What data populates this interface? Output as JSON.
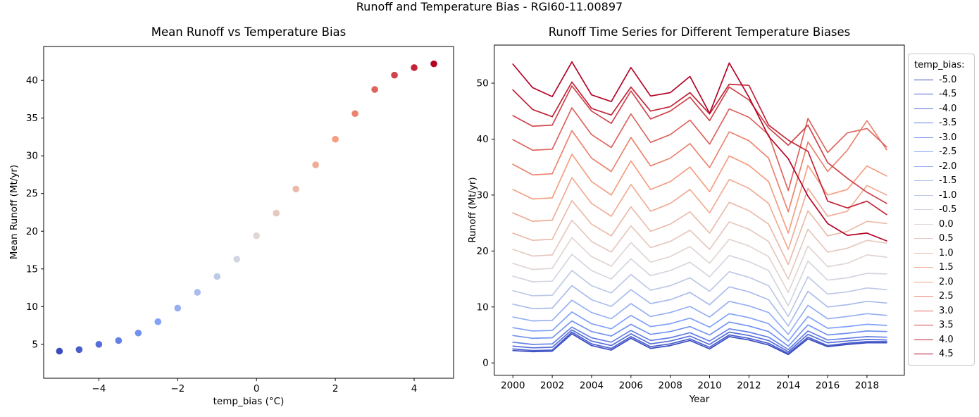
{
  "figure": {
    "title": "Runoff and Temperature Bias - RGI60-11.00897"
  },
  "colors": {
    "axis": "#000000",
    "legend_border": "#c7c7c7",
    "background": "#ffffff",
    "coolwarm_palette": [
      "#3b4cc0",
      "#495dcc",
      "#566fd8",
      "#6480e4",
      "#7292f0",
      "#81a2f8",
      "#96aff2",
      "#aabcec",
      "#bec9e6",
      "#d3d6e0",
      "#e0d6d3",
      "#e5c8bf",
      "#eabbaa",
      "#efad96",
      "#f49f82",
      "#eb846f",
      "#dd645d",
      "#cf444b",
      "#c22438",
      "#b40426"
    ]
  },
  "legend": {
    "title": "temp_bias:",
    "entries": [
      "-5.0",
      "-4.5",
      "-4.0",
      "-3.5",
      "-3.0",
      "-2.5",
      "-2.0",
      "-1.5",
      "-1.0",
      "-0.5",
      "0.0",
      "0.5",
      "1.0",
      "1.5",
      "2.0",
      "2.5",
      "3.0",
      "3.5",
      "4.0",
      "4.5"
    ],
    "position": "right"
  },
  "chart_data": [
    {
      "type": "scatter",
      "title": "Mean Runoff vs Temperature Bias",
      "xlabel": "temp_bias (°C)",
      "ylabel": "Mean Runoff (Mt/yr)",
      "x": [
        -5.0,
        -4.5,
        -4.0,
        -3.5,
        -3.0,
        -2.5,
        -2.0,
        -1.5,
        -1.0,
        -0.5,
        0.0,
        0.5,
        1.0,
        1.5,
        2.0,
        2.5,
        3.0,
        3.5,
        4.0,
        4.5
      ],
      "y": [
        4.1,
        4.3,
        5.0,
        5.5,
        6.5,
        8.0,
        9.8,
        11.9,
        14.0,
        16.3,
        19.4,
        22.4,
        25.6,
        28.8,
        32.2,
        35.6,
        38.8,
        40.7,
        41.7,
        42.2
      ],
      "xticks": [
        -4,
        -2,
        0,
        2,
        4
      ],
      "xtick_labels": [
        "−4",
        "−2",
        "0",
        "2",
        "4"
      ],
      "yticks": [
        5,
        10,
        15,
        20,
        25,
        30,
        35,
        40
      ],
      "ytick_labels": [
        "5",
        "10",
        "15",
        "20",
        "25",
        "30",
        "35",
        "40"
      ],
      "xlim": [
        -5.4,
        5.0
      ],
      "ylim": [
        0.5,
        44.5
      ],
      "grid": false,
      "marker_radius": 4.8
    },
    {
      "type": "line",
      "title": "Runoff Time Series for Different Temperature Biases",
      "xlabel": "Year",
      "ylabel": "Runoff (Mt/yr)",
      "x": [
        2000,
        2001,
        2002,
        2003,
        2004,
        2005,
        2006,
        2007,
        2008,
        2009,
        2010,
        2011,
        2012,
        2013,
        2014,
        2015,
        2016,
        2017,
        2018,
        2019
      ],
      "series": [
        {
          "name": "-5.0",
          "values": [
            2.2,
            2.0,
            2.1,
            5.2,
            3.1,
            2.3,
            4.4,
            2.6,
            3.1,
            4.0,
            2.5,
            4.7,
            4.1,
            3.2,
            1.5,
            4.3,
            2.9,
            3.3,
            3.6,
            3.6
          ]
        },
        {
          "name": "-4.5",
          "values": [
            2.5,
            2.2,
            2.3,
            5.5,
            3.4,
            2.6,
            4.7,
            2.9,
            3.4,
            4.3,
            2.8,
            5.0,
            4.4,
            3.5,
            1.7,
            4.6,
            3.1,
            3.5,
            3.8,
            3.8
          ]
        },
        {
          "name": "-4.0",
          "values": [
            3.0,
            2.7,
            2.8,
            5.9,
            3.9,
            3.1,
            5.2,
            3.4,
            3.9,
            4.8,
            3.3,
            5.5,
            4.9,
            4.0,
            2.0,
            5.1,
            3.6,
            3.9,
            4.2,
            4.1
          ]
        },
        {
          "name": "-3.5",
          "values": [
            3.7,
            3.3,
            3.4,
            6.4,
            4.5,
            3.7,
            5.8,
            4.0,
            4.5,
            5.4,
            3.9,
            6.1,
            5.5,
            4.6,
            2.4,
            5.7,
            4.1,
            4.4,
            4.7,
            4.6
          ]
        },
        {
          "name": "-3.0",
          "values": [
            4.9,
            4.4,
            4.5,
            7.5,
            5.6,
            4.8,
            6.9,
            5.1,
            5.6,
            6.5,
            5.0,
            7.3,
            6.6,
            5.6,
            3.0,
            6.8,
            5.0,
            5.3,
            5.7,
            5.6
          ]
        },
        {
          "name": "-2.5",
          "values": [
            6.3,
            5.7,
            5.8,
            9.1,
            7.0,
            6.1,
            8.5,
            6.5,
            7.0,
            8.0,
            6.4,
            8.8,
            8.1,
            7.0,
            3.9,
            8.3,
            6.2,
            6.5,
            6.9,
            6.7
          ]
        },
        {
          "name": "-2.0",
          "values": [
            8.2,
            7.5,
            7.6,
            11.2,
            9.0,
            7.9,
            10.6,
            8.3,
            9.0,
            10.1,
            8.2,
            11.0,
            10.2,
            9.0,
            5.1,
            10.3,
            7.9,
            8.3,
            8.8,
            8.5
          ]
        },
        {
          "name": "-1.5",
          "values": [
            10.5,
            9.7,
            9.8,
            13.8,
            11.3,
            10.1,
            13.1,
            10.6,
            11.3,
            12.6,
            10.4,
            13.6,
            12.7,
            11.3,
            6.6,
            12.8,
            10.0,
            10.4,
            11.0,
            10.7
          ]
        },
        {
          "name": "-1.0",
          "values": [
            12.9,
            12.0,
            12.1,
            16.5,
            13.8,
            12.5,
            15.8,
            13.0,
            13.8,
            15.2,
            12.8,
            16.3,
            15.3,
            13.8,
            8.3,
            15.4,
            12.3,
            12.7,
            13.4,
            13.1
          ]
        },
        {
          "name": "-0.5",
          "values": [
            15.5,
            14.5,
            14.6,
            19.4,
            16.5,
            15.0,
            18.6,
            15.6,
            16.5,
            18.0,
            15.4,
            19.2,
            18.1,
            16.5,
            10.2,
            18.2,
            14.8,
            15.2,
            16.0,
            15.9
          ]
        },
        {
          "name": "0.0",
          "values": [
            17.8,
            16.7,
            16.9,
            22.4,
            19.0,
            17.3,
            21.5,
            18.0,
            19.0,
            20.8,
            17.8,
            22.1,
            20.9,
            19.0,
            12.6,
            20.9,
            17.2,
            17.8,
            19.3,
            18.9
          ]
        },
        {
          "name": "0.5",
          "values": [
            20.3,
            19.1,
            19.3,
            25.5,
            21.7,
            19.8,
            24.5,
            20.6,
            21.7,
            23.7,
            20.3,
            25.2,
            23.9,
            21.7,
            15.0,
            23.9,
            19.8,
            20.5,
            21.9,
            21.4
          ]
        },
        {
          "name": "1.0",
          "values": [
            23.2,
            21.9,
            22.1,
            29.0,
            24.8,
            22.7,
            27.9,
            23.5,
            24.8,
            27.0,
            23.2,
            28.7,
            27.2,
            24.8,
            17.6,
            27.2,
            22.7,
            23.5,
            25.3,
            24.9
          ]
        },
        {
          "name": "1.5",
          "values": [
            26.8,
            25.3,
            25.5,
            33.1,
            28.5,
            26.2,
            31.9,
            27.1,
            28.5,
            31.0,
            26.8,
            32.8,
            31.2,
            28.5,
            20.3,
            31.2,
            26.2,
            27.1,
            31.7,
            30.0
          ]
        },
        {
          "name": "2.0",
          "values": [
            31.0,
            29.3,
            29.5,
            37.3,
            32.4,
            30.0,
            36.1,
            31.0,
            32.4,
            35.0,
            30.6,
            37.0,
            35.3,
            32.4,
            23.2,
            35.3,
            30.0,
            31.0,
            35.2,
            33.4
          ]
        },
        {
          "name": "2.5",
          "values": [
            35.5,
            33.6,
            33.8,
            41.5,
            36.6,
            34.2,
            40.3,
            35.2,
            36.6,
            39.2,
            34.9,
            41.3,
            39.7,
            36.6,
            27.0,
            39.5,
            34.2,
            38.0,
            43.3,
            38.1
          ]
        },
        {
          "name": "3.0",
          "values": [
            39.9,
            38.0,
            38.2,
            45.6,
            40.8,
            38.5,
            44.5,
            39.4,
            40.8,
            43.4,
            39.1,
            45.4,
            43.9,
            40.8,
            30.8,
            43.7,
            37.6,
            41.1,
            41.9,
            38.6
          ]
        },
        {
          "name": "3.5",
          "values": [
            44.2,
            42.3,
            42.5,
            49.5,
            45.0,
            42.8,
            48.6,
            43.6,
            45.0,
            47.5,
            43.3,
            49.3,
            47.0,
            42.0,
            38.9,
            42.5,
            35.8,
            33.0,
            30.5,
            28.5
          ]
        },
        {
          "name": "4.0",
          "values": [
            48.8,
            45.3,
            44.0,
            50.2,
            45.5,
            44.3,
            49.3,
            45.0,
            45.8,
            48.3,
            44.5,
            49.8,
            49.6,
            42.5,
            39.8,
            37.8,
            28.9,
            27.7,
            28.9,
            26.5
          ]
        },
        {
          "name": "4.5",
          "values": [
            53.4,
            49.2,
            47.6,
            53.8,
            47.9,
            46.7,
            52.8,
            47.7,
            48.3,
            51.2,
            44.6,
            53.6,
            47.5,
            40.5,
            36.5,
            29.8,
            24.9,
            22.8,
            23.2,
            21.8
          ]
        }
      ],
      "xticks": [
        2000,
        2002,
        2004,
        2006,
        2008,
        2010,
        2012,
        2014,
        2016,
        2018
      ],
      "xtick_labels": [
        "2000",
        "2002",
        "2004",
        "2006",
        "2008",
        "2010",
        "2012",
        "2014",
        "2016",
        "2018"
      ],
      "yticks": [
        0,
        10,
        20,
        30,
        40,
        50
      ],
      "ytick_labels": [
        "0",
        "10",
        "20",
        "30",
        "40",
        "50"
      ],
      "xlim": [
        1999.05,
        2019.9
      ],
      "ylim": [
        -2.2,
        56.8
      ],
      "grid": false,
      "line_width": 1.7,
      "legend_title": "temp_bias:"
    }
  ]
}
